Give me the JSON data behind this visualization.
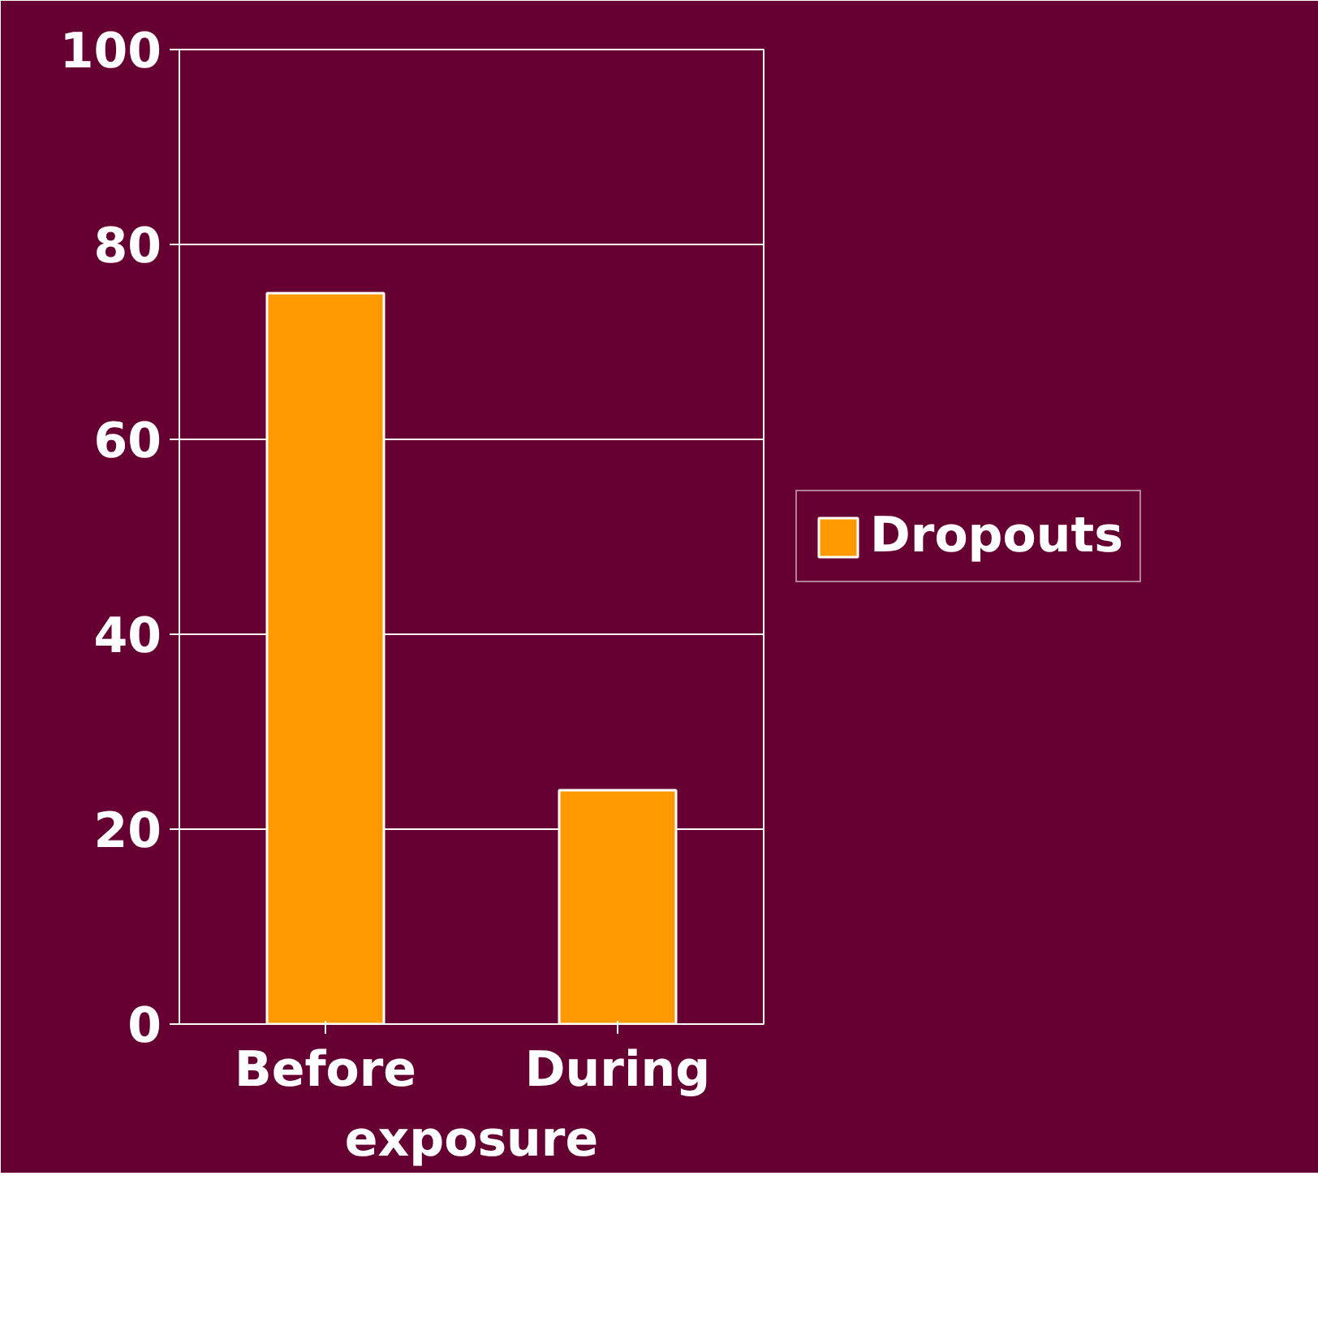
{
  "chart_data": {
    "type": "bar",
    "categories": [
      "Before",
      "During"
    ],
    "xlabel": "exposure",
    "series": [
      {
        "name": "Dropouts",
        "color": "#ff9900",
        "values": [
          75,
          24
        ]
      }
    ],
    "ylim": [
      0,
      100
    ],
    "yticks": [
      0,
      20,
      40,
      60,
      80,
      100
    ],
    "grid": "y",
    "legend": "right"
  }
}
